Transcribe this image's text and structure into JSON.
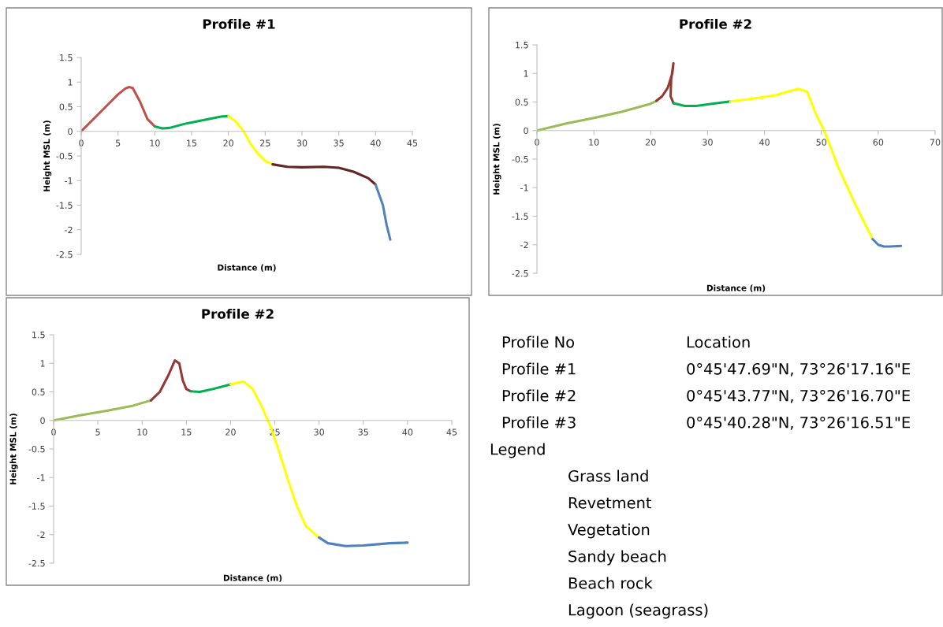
{
  "chart_data": [
    {
      "type": "line",
      "title": "Profile #1",
      "xlabel": "Distance (m)",
      "ylabel": "Height MSL (m)",
      "xlim": [
        0,
        45
      ],
      "xticks": [
        0,
        5,
        10,
        15,
        20,
        25,
        30,
        35,
        40,
        45
      ],
      "ylim": [
        -2.5,
        1.5
      ],
      "yticks": [
        -2.5,
        -2,
        -1.5,
        -1,
        -0.5,
        0,
        0.5,
        1,
        1.5
      ],
      "grid": false,
      "legend": false,
      "marker": "none",
      "line_style": "solid",
      "series": [
        {
          "color": "#c0504d",
          "x": [
            0,
            2,
            4,
            5,
            6,
            6.5,
            7,
            8,
            9,
            10
          ],
          "values": [
            0,
            0.3,
            0.6,
            0.75,
            0.87,
            0.9,
            0.88,
            0.6,
            0.25,
            0.1
          ]
        },
        {
          "color": "#00b050",
          "x": [
            10,
            11,
            12,
            14,
            15,
            17,
            19,
            20
          ],
          "values": [
            0.1,
            0.06,
            0.07,
            0.15,
            0.18,
            0.24,
            0.3,
            0.31
          ]
        },
        {
          "color": "#ffff00",
          "x": [
            20,
            21,
            22,
            23,
            24,
            25,
            26
          ],
          "values": [
            0.31,
            0.2,
            0.02,
            -0.25,
            -0.45,
            -0.6,
            -0.67
          ]
        },
        {
          "color": "#632523",
          "x": [
            26,
            28,
            30,
            33,
            35,
            37,
            39,
            40
          ],
          "values": [
            -0.67,
            -0.72,
            -0.73,
            -0.72,
            -0.74,
            -0.82,
            -0.95,
            -1.08
          ]
        },
        {
          "color": "#4f81bd",
          "x": [
            40,
            41,
            41.5,
            42
          ],
          "values": [
            -1.08,
            -1.5,
            -1.9,
            -2.2
          ]
        }
      ]
    },
    {
      "type": "line",
      "title": "Profile #2",
      "xlabel": "Distance (m)",
      "ylabel": "Height MSL (m)",
      "xlim": [
        0,
        70
      ],
      "xticks": [
        0,
        10,
        20,
        30,
        40,
        50,
        60,
        70
      ],
      "ylim": [
        -2.5,
        1.5
      ],
      "yticks": [
        -2.5,
        -2,
        -1.5,
        -1,
        -0.5,
        0,
        0.5,
        1,
        1.5
      ],
      "grid": false,
      "legend": false,
      "marker": "none",
      "line_style": "solid",
      "series": [
        {
          "color": "#9bbb59",
          "x": [
            0,
            5,
            10,
            15,
            20,
            21
          ],
          "values": [
            0,
            0.12,
            0.22,
            0.33,
            0.47,
            0.52
          ]
        },
        {
          "color": "#953735",
          "x": [
            21,
            22,
            23,
            23.8,
            24,
            23.6,
            23.5,
            24
          ],
          "values": [
            0.52,
            0.6,
            0.75,
            1.0,
            1.18,
            0.9,
            0.6,
            0.48
          ]
        },
        {
          "color": "#00b050",
          "x": [
            24,
            26,
            28,
            30,
            34
          ],
          "values": [
            0.48,
            0.43,
            0.43,
            0.46,
            0.51
          ]
        },
        {
          "color": "#ffff00",
          "x": [
            34,
            38,
            42,
            44,
            46,
            47.5,
            49,
            50.5,
            53,
            56,
            59
          ],
          "values": [
            0.51,
            0.56,
            0.62,
            0.68,
            0.73,
            0.68,
            0.3,
            0,
            -0.65,
            -1.3,
            -1.9
          ]
        },
        {
          "color": "#4f81bd",
          "x": [
            59,
            60,
            61,
            62,
            64
          ],
          "values": [
            -1.9,
            -2.0,
            -2.03,
            -2.03,
            -2.02
          ]
        }
      ]
    },
    {
      "type": "line",
      "title": "Profile #2",
      "xlabel": "Distance (m)",
      "ylabel": "Height MSL (m)",
      "xlim": [
        0,
        45
      ],
      "xticks": [
        0,
        5,
        10,
        15,
        20,
        25,
        30,
        35,
        40,
        45
      ],
      "ylim": [
        -2.5,
        1.5
      ],
      "yticks": [
        -2.5,
        -2,
        -1.5,
        -1,
        -0.5,
        0,
        0.5,
        1,
        1.5
      ],
      "grid": false,
      "legend": false,
      "marker": "none",
      "line_style": "solid",
      "series": [
        {
          "color": "#9bbb59",
          "x": [
            0,
            3,
            6,
            9,
            11
          ],
          "values": [
            0,
            0.09,
            0.17,
            0.26,
            0.35
          ]
        },
        {
          "color": "#953735",
          "x": [
            11,
            12,
            13,
            13.7,
            14.2,
            14.6,
            15,
            15.5
          ],
          "values": [
            0.35,
            0.5,
            0.8,
            1.05,
            1.0,
            0.7,
            0.55,
            0.51
          ]
        },
        {
          "color": "#00b050",
          "x": [
            15.5,
            16.5,
            18,
            20
          ],
          "values": [
            0.51,
            0.5,
            0.55,
            0.63
          ]
        },
        {
          "color": "#ffff00",
          "x": [
            20,
            21,
            21.5,
            22.5,
            23.5,
            24.5,
            25.5,
            26.5,
            27.5,
            28.5,
            30
          ],
          "values": [
            0.63,
            0.67,
            0.68,
            0.55,
            0.25,
            -0.1,
            -0.55,
            -1.05,
            -1.5,
            -1.85,
            -2.05
          ]
        },
        {
          "color": "#4f81bd",
          "x": [
            30,
            31,
            33,
            35,
            38,
            40
          ],
          "values": [
            -2.05,
            -2.15,
            -2.2,
            -2.19,
            -2.15,
            -2.14
          ]
        }
      ]
    },
    {
      "type": "other",
      "annotations": [
        "Profile No",
        "Location",
        "Profile #1",
        "0°45'47.69\"N, 73°26'17.16\"E",
        "Profile #2",
        "0°45'43.77\"N, 73°26'16.70\"E",
        "Profile #3",
        "0°45'40.28\"N, 73°26'16.51\"E",
        "Legend",
        "Grass land",
        "Revetment",
        "Vegetation",
        "Sandy beach",
        "Beach rock",
        "Lagoon (seagrass)"
      ]
    }
  ]
}
